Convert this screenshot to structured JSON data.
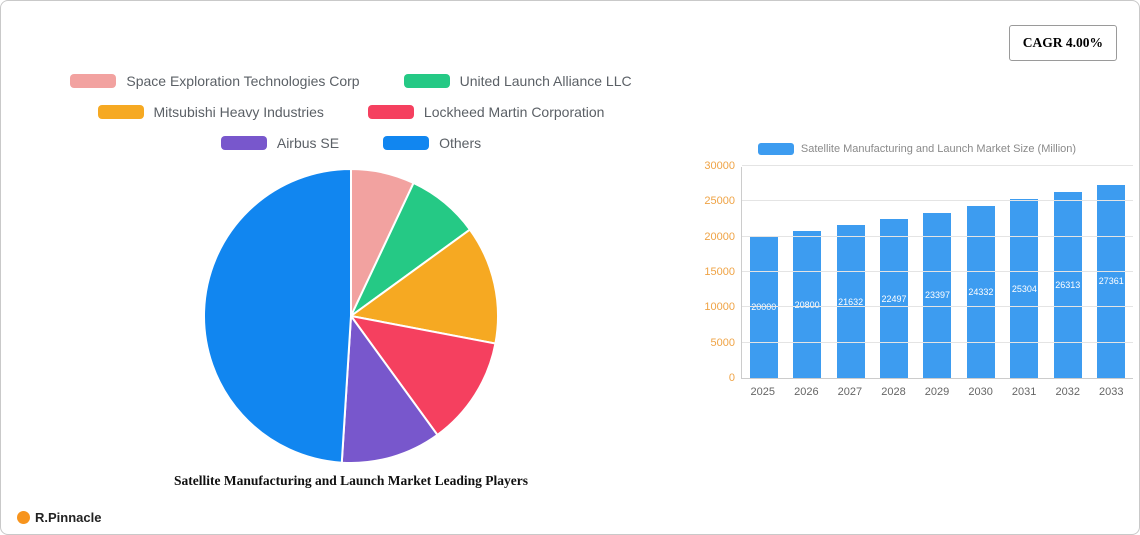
{
  "header": {
    "cagr_label": "CAGR 4.00%"
  },
  "footer": {
    "brand": "R.Pinnacle",
    "accent_color": "#F7941D"
  },
  "chart_data": [
    {
      "type": "pie",
      "title": "Satellite Manufacturing and Launch Market Leading Players",
      "legend_position": "top",
      "series": [
        {
          "name": "Space Exploration Technologies Corp",
          "value": 7,
          "color": "#F2A2A0"
        },
        {
          "name": "United Launch Alliance LLC",
          "value": 8,
          "color": "#25C985"
        },
        {
          "name": "Mitsubishi Heavy Industries",
          "value": 13,
          "color": "#F6A922"
        },
        {
          "name": "Lockheed Martin Corporation",
          "value": 12,
          "color": "#F5405F"
        },
        {
          "name": "Airbus SE",
          "value": 11,
          "color": "#7857CC"
        },
        {
          "name": "Others",
          "value": 49,
          "color": "#1186F0"
        }
      ],
      "legend_rows": [
        [
          0,
          1
        ],
        [
          2,
          3
        ],
        [
          4,
          5
        ]
      ],
      "units": "percent share (estimated from slice angles)"
    },
    {
      "type": "bar",
      "legend": "Satellite Manufacturing and Launch Market Size (Million)",
      "color": "#3D9CF0",
      "categories": [
        "2025",
        "2026",
        "2027",
        "2028",
        "2029",
        "2030",
        "2031",
        "2032",
        "2033"
      ],
      "values": [
        20000,
        20800,
        21632,
        22497,
        23397,
        24332,
        25304,
        26313,
        27361
      ],
      "ylim": [
        0,
        30000
      ],
      "yticks": [
        0,
        5000,
        10000,
        15000,
        20000,
        25000,
        30000
      ],
      "grid": true,
      "legend_position": "top"
    }
  ]
}
